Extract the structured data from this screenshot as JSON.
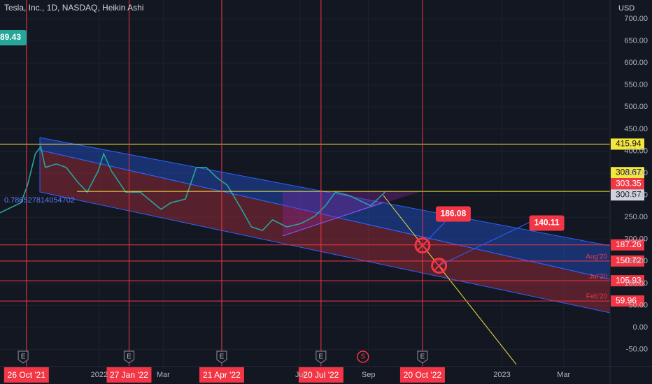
{
  "chart_data": {
    "type": "line",
    "title": "Tesla, Inc., 1D, NASDAQ, Heikin Ashi",
    "y_axis_label": "USD",
    "color": "#26a69a",
    "x": [
      "2021-10-02",
      "2021-10-21",
      "2021-10-27",
      "2021-11-03",
      "2021-11-08",
      "2021-11-12",
      "2021-11-22",
      "2021-12-01",
      "2021-12-11",
      "2021-12-20",
      "2021-12-30",
      "2022-01-04",
      "2022-01-11",
      "2022-01-24",
      "2022-02-06",
      "2022-02-25",
      "2022-03-06",
      "2022-03-19",
      "2022-03-29",
      "2022-04-07",
      "2022-04-17",
      "2022-04-26",
      "2022-05-09",
      "2022-05-18",
      "2022-05-28",
      "2022-06-06",
      "2022-06-19",
      "2022-07-02",
      "2022-07-14",
      "2022-07-24",
      "2022-08-02",
      "2022-08-15",
      "2022-08-28",
      "2022-09-03",
      "2022-09-16"
    ],
    "values": [
      260,
      283,
      323,
      394,
      410,
      363,
      371,
      363,
      331,
      307,
      355,
      394,
      355,
      307,
      307,
      268,
      283,
      291,
      363,
      363,
      339,
      323,
      268,
      228,
      220,
      244,
      228,
      236,
      252,
      276,
      307,
      299,
      283,
      276,
      307
    ],
    "xlim": [
      "2021-10-02",
      "2023-04-08"
    ],
    "ylim": [
      -88.7,
      742.8
    ],
    "yticks": [
      {
        "value": -50,
        "label": "-50.00"
      },
      {
        "value": 0,
        "label": "0.00"
      },
      {
        "value": 50,
        "label": "50.00"
      },
      {
        "value": 100,
        "label": "100.00"
      },
      {
        "value": 150,
        "label": "150.00"
      },
      {
        "value": 200,
        "label": "200.00"
      },
      {
        "value": 250,
        "label": "250.00"
      },
      {
        "value": 300,
        "label": "300.00"
      },
      {
        "value": 350,
        "label": "350.00"
      },
      {
        "value": 400,
        "label": "400.00"
      },
      {
        "value": 450,
        "label": "450.00"
      },
      {
        "value": 500,
        "label": "500.00"
      },
      {
        "value": 550,
        "label": "550.00"
      },
      {
        "value": 600,
        "label": "600.00"
      },
      {
        "value": 650,
        "label": "650.00"
      },
      {
        "value": 700,
        "label": "700.00"
      }
    ],
    "xticks": [
      {
        "value": "2021-12-31",
        "label": "2022"
      },
      {
        "value": "2022-02-27",
        "label": "Mar"
      },
      {
        "value": "2022-07-01",
        "label": "Jul"
      },
      {
        "value": "2022-09-01",
        "label": "Sep"
      },
      {
        "value": "2022-12-31",
        "label": "2023"
      },
      {
        "value": "2023-02-25",
        "label": "Mar"
      }
    ],
    "grid": true,
    "price_labels": [
      {
        "value": 415.94,
        "label": "415.94",
        "color": "#f5e63b",
        "line": true
      },
      {
        "value": 308.67,
        "label": "308.67",
        "color": "#f5e63b",
        "line": true
      },
      {
        "value": 303.35,
        "label": "303.35",
        "color": "#f23645",
        "line": false
      },
      {
        "value": 300.57,
        "label": "300.57",
        "color": "#d1d4dc",
        "line": false
      },
      {
        "value": 187.26,
        "label": "187.26",
        "color": "#f23645",
        "line": true
      },
      {
        "value": 150.72,
        "label": "150.72",
        "color": "#f23645",
        "line": true
      },
      {
        "value": 105.93,
        "label": "105.93",
        "color": "#f23645",
        "line": true
      },
      {
        "value": 59.96,
        "label": "59.96",
        "color": "#f23645",
        "line": true
      }
    ],
    "vertical_markers": [
      {
        "value": "2021-10-26",
        "label": "26 Oct '21"
      },
      {
        "value": "2022-01-27",
        "label": "27 Jan '22"
      },
      {
        "value": "2022-04-21",
        "label": "21 Apr '22"
      },
      {
        "value": "2022-07-20",
        "label": "20 Jul '22"
      },
      {
        "value": "2022-10-20",
        "label": "20 Oct '22"
      }
    ],
    "targets": [
      {
        "x": "2022-10-20",
        "value": 186.08,
        "label": "186.08"
      },
      {
        "x": "2022-11-04",
        "value": 140.11,
        "label": "140.11"
      }
    ],
    "fib_labels": [
      {
        "value": 160,
        "label": "Aug'20"
      },
      {
        "value": 115,
        "label": "Jul'20"
      },
      {
        "value": 70,
        "label": "Feb'20"
      }
    ],
    "ratio_label": "0.786527814054702",
    "last_marker": "89.43",
    "events": [
      {
        "x": "2021-10-23",
        "label": "E"
      },
      {
        "x": "2022-01-27",
        "label": "E"
      },
      {
        "x": "2022-04-21",
        "label": "E"
      },
      {
        "x": "2022-07-20",
        "label": "E"
      },
      {
        "x": "2022-08-27",
        "label": "S"
      },
      {
        "x": "2022-10-20",
        "label": "E"
      }
    ]
  }
}
